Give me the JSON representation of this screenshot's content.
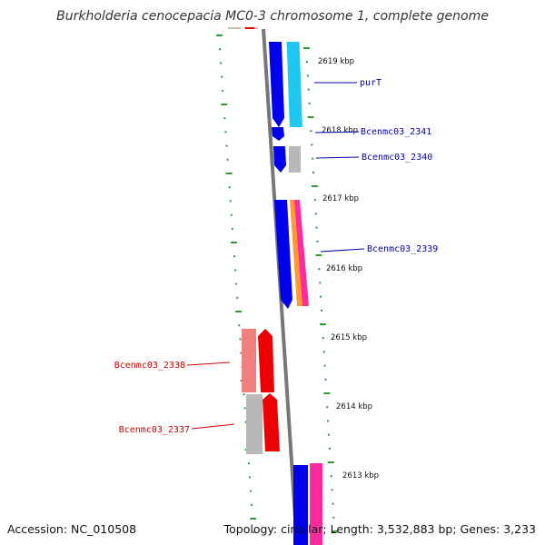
{
  "title": "Burkholderia cenocepacia MC0-3 chromosome 1, complete genome",
  "accession_text": "Accession: NC_010508",
  "summary_text": "Topology: circular; Length: 3,532,883 bp; Genes: 3,233",
  "colors": {
    "dark_blue": "#0000ee",
    "light_blue": "#1ec8f0",
    "grey": "#b8b8b8",
    "red": "#ee0000",
    "pink": "#f08080",
    "magenta": "#ff2aa0",
    "orange": "#ff9933",
    "tick_green": "#339933",
    "backbone": "#777777",
    "blue_label": "#0000aa",
    "red_label": "#cc0000"
  },
  "ruler": [
    {
      "label": "2619 kbp"
    },
    {
      "label": "2618 kbp"
    },
    {
      "label": "2617 kbp"
    },
    {
      "label": "2616 kbp"
    },
    {
      "label": "2615 kbp"
    },
    {
      "label": "2614 kbp"
    },
    {
      "label": "2613 kbp"
    }
  ],
  "gene_labels": [
    {
      "text": "purT",
      "strand": "plus"
    },
    {
      "text": "Bcenmc03_2341",
      "strand": "plus"
    },
    {
      "text": "Bcenmc03_2340",
      "strand": "plus"
    },
    {
      "text": "Bcenmc03_2339",
      "strand": "plus"
    },
    {
      "text": "Bcenmc03_2338",
      "strand": "minus"
    },
    {
      "text": "Bcenmc03_2337",
      "strand": "minus"
    }
  ]
}
